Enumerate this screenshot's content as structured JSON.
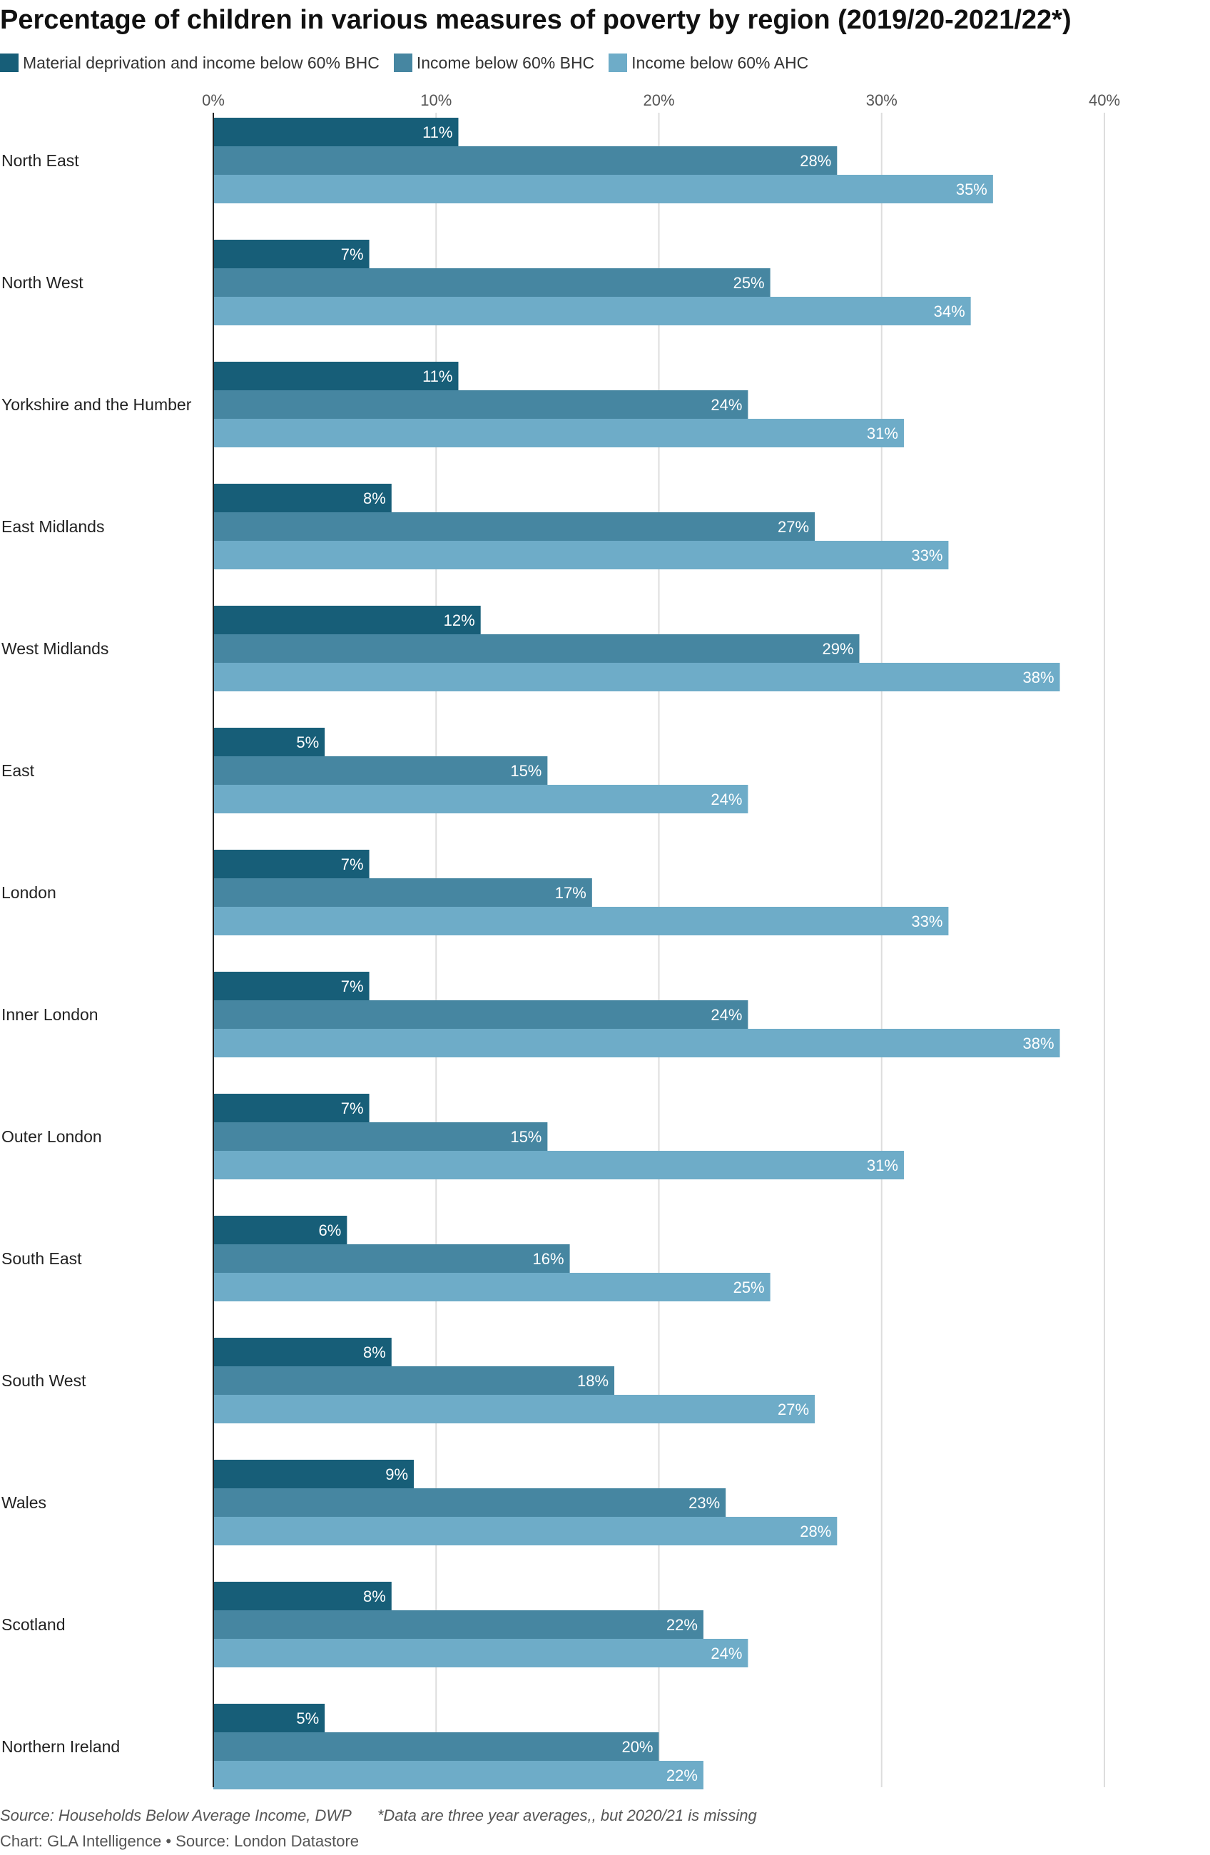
{
  "chart_data": {
    "type": "bar",
    "orientation": "horizontal",
    "title": "Percentage of children in various measures of poverty by region (2019/20-2021/22*)",
    "categories": [
      "North East",
      "North West",
      "Yorkshire and the Humber",
      "East Midlands",
      "West Midlands",
      "East",
      "London",
      "Inner London",
      "Outer London",
      "South East",
      "South West",
      "Wales",
      "Scotland",
      "Northern Ireland"
    ],
    "series": [
      {
        "name": "Material deprivation and income below 60% BHC",
        "color": "#175e78",
        "values": [
          11,
          7,
          11,
          8,
          12,
          5,
          7,
          7,
          7,
          6,
          8,
          9,
          8,
          5
        ]
      },
      {
        "name": "Income below 60% BHC",
        "color": "#4686a1",
        "values": [
          28,
          25,
          24,
          27,
          29,
          15,
          17,
          24,
          15,
          16,
          18,
          23,
          22,
          20
        ]
      },
      {
        "name": "Income below 60% AHC",
        "color": "#6eacc8",
        "values": [
          35,
          34,
          31,
          33,
          38,
          24,
          33,
          38,
          31,
          25,
          27,
          28,
          24,
          22
        ]
      }
    ],
    "xlim": [
      0,
      40
    ],
    "ticks": [
      0,
      10,
      20,
      30,
      40
    ],
    "tick_labels": [
      "0%",
      "10%",
      "20%",
      "30%",
      "40%"
    ],
    "value_suffix": "%",
    "grid": true,
    "legend_position": "top-left"
  },
  "footer": {
    "source": "Source: Households Below Average Income, DWP",
    "note": "*Data are three year averages,, but 2020/21 is missing",
    "credit": "Chart: GLA Intelligence • Source: London Datastore"
  },
  "colors": {
    "gridline": "#dddddd",
    "axis": "#222222",
    "label_text": "#ffffff"
  }
}
